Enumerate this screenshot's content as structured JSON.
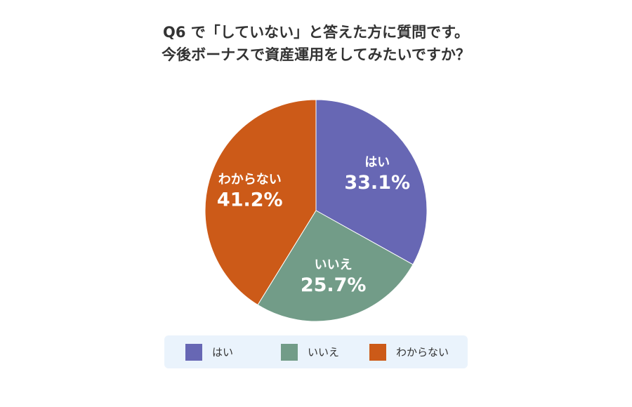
{
  "chart_data": {
    "type": "pie",
    "title_lines": [
      "Q6 で「していない」と答えた方に質問です。",
      "今後ボーナスで資産運用をしてみたいですか？"
    ],
    "slices": [
      {
        "label": "はい",
        "value": 33.1,
        "percent_label": "33.1%",
        "color": "#6767b4"
      },
      {
        "label": "いいえ",
        "value": 25.7,
        "percent_label": "25.7%",
        "color": "#729c88"
      },
      {
        "label": "わからない",
        "value": 41.2,
        "percent_label": "41.2%",
        "color": "#cc5a18"
      }
    ],
    "start_angle": "12 o'clock",
    "direction": "clockwise",
    "legend_position": "bottom",
    "legend": [
      "はい",
      "いいえ",
      "わからない"
    ]
  }
}
